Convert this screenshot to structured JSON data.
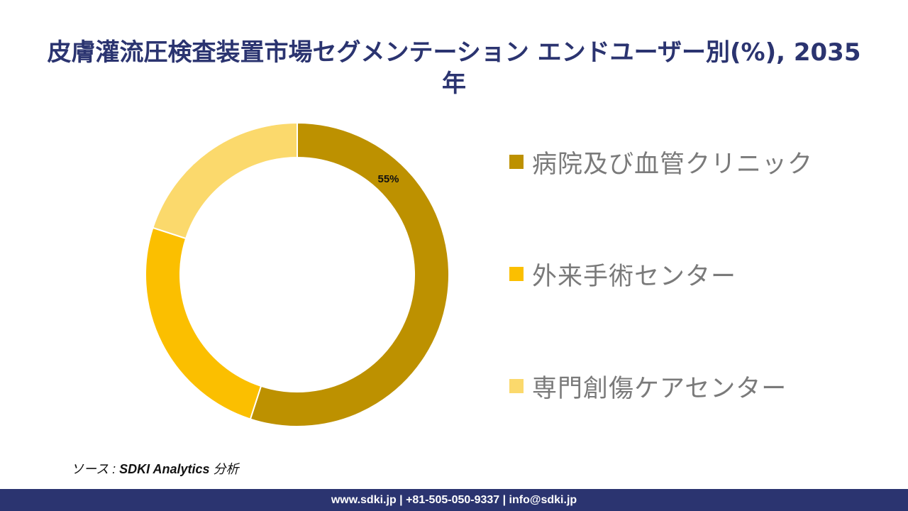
{
  "title": {
    "line1": "皮膚灌流圧検査装置市場セグメンテーション エンドユーザー別(%), 2035",
    "line2": "年"
  },
  "chart_data": {
    "type": "pie",
    "title": "皮膚灌流圧検査装置市場セグメンテーション エンドユーザー別(%), 2035 年",
    "donut": true,
    "categories": [
      "病院及び血管クリニック",
      "外来手術センター",
      "専門創傷ケアセンター"
    ],
    "values": [
      55,
      25,
      20
    ],
    "colors": [
      "#bd9100",
      "#fbbf00",
      "#fbd96c"
    ],
    "labels": [
      "55%",
      "",
      ""
    ],
    "legend_position": "right"
  },
  "source": {
    "prefix": "ソース : ",
    "brand": "SDKI Analytics",
    "suffix": " 分析"
  },
  "footer": {
    "text": "www.sdki.jp | +81-505-050-9337 | info@sdki.jp"
  }
}
